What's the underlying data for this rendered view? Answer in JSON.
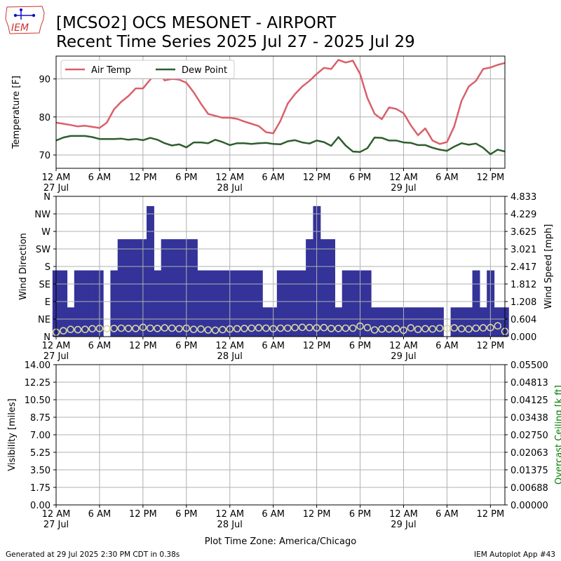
{
  "header": {
    "title_line1": "[MCSO2] OCS MESONET - AIRPORT",
    "title_line2": "Recent Time Series 2025 Jul 27 - 2025 Jul 29",
    "logo_text": "IEM"
  },
  "footer": {
    "generated": "Generated at 29 Jul 2025 2:30 PM CDT in 0.38s",
    "app": "IEM Autoplot App #43",
    "xlabel": "Plot Time Zone: America/Chicago"
  },
  "colors": {
    "air_temp": "#d9606a",
    "dew_point": "#2e5e2e",
    "wind_dir": "#333399",
    "wind_speed": "#d8d8a0",
    "ceiling_label": "#008000"
  },
  "time_axis": {
    "range_hours": [
      0,
      62
    ],
    "ticks": [
      {
        "h": 0,
        "label": "12 AM",
        "date": "27 Jul"
      },
      {
        "h": 6,
        "label": "6 AM",
        "date": ""
      },
      {
        "h": 12,
        "label": "12 PM",
        "date": ""
      },
      {
        "h": 18,
        "label": "6 PM",
        "date": ""
      },
      {
        "h": 24,
        "label": "12 AM",
        "date": "28 Jul"
      },
      {
        "h": 30,
        "label": "6 AM",
        "date": ""
      },
      {
        "h": 36,
        "label": "12 PM",
        "date": ""
      },
      {
        "h": 42,
        "label": "6 PM",
        "date": ""
      },
      {
        "h": 48,
        "label": "12 AM",
        "date": "29 Jul"
      },
      {
        "h": 54,
        "label": "6 AM",
        "date": ""
      },
      {
        "h": 60,
        "label": "12 PM",
        "date": ""
      }
    ]
  },
  "chart_data": [
    {
      "type": "line",
      "ylabel": "Temperature [F]",
      "ylim": [
        66.5,
        96
      ],
      "yticks": [
        70,
        80,
        90
      ],
      "grid": true,
      "legend": "top-left",
      "series": [
        {
          "name": "Air Temp",
          "x": [
            0,
            1,
            2,
            3,
            4,
            5,
            6,
            7,
            8,
            9,
            10,
            11,
            12,
            13,
            14,
            15,
            16,
            17,
            18,
            19,
            20,
            21,
            22,
            23,
            24,
            25,
            26,
            27,
            28,
            29,
            30,
            31,
            32,
            33,
            34,
            35,
            36,
            37,
            38,
            39,
            40,
            41,
            42,
            43,
            44,
            45,
            46,
            47,
            48,
            49,
            50,
            51,
            52,
            53,
            54,
            55,
            56,
            57,
            58,
            59,
            60,
            61,
            62
          ],
          "y": [
            78.5,
            78.2,
            77.9,
            77.5,
            77.7,
            77.4,
            77.1,
            78.5,
            82.0,
            84.0,
            85.5,
            87.5,
            87.5,
            89.8,
            92.0,
            89.6,
            90.0,
            89.8,
            89.0,
            86.5,
            83.5,
            80.8,
            80.3,
            79.8,
            79.8,
            79.5,
            78.8,
            78.2,
            77.6,
            76.0,
            75.7,
            79.0,
            83.5,
            86.0,
            88.0,
            89.5,
            91.3,
            92.9,
            92.6,
            95.0,
            94.3,
            94.8,
            91.3,
            85.0,
            80.8,
            79.4,
            82.5,
            82.1,
            81.0,
            77.8,
            75.2,
            77.0,
            73.8,
            72.9,
            73.4,
            77.5,
            84.2,
            88.0,
            89.5,
            92.6,
            93.0,
            93.7,
            94.2
          ]
        },
        {
          "name": "Dew Point",
          "x": [
            0,
            1,
            2,
            3,
            4,
            5,
            6,
            7,
            8,
            9,
            10,
            11,
            12,
            13,
            14,
            15,
            16,
            17,
            18,
            19,
            20,
            21,
            22,
            23,
            24,
            25,
            26,
            27,
            28,
            29,
            30,
            31,
            32,
            33,
            34,
            35,
            36,
            37,
            38,
            39,
            40,
            41,
            42,
            43,
            44,
            45,
            46,
            47,
            48,
            49,
            50,
            51,
            52,
            53,
            54,
            55,
            56,
            57,
            58,
            59,
            60,
            61,
            62
          ],
          "y": [
            73.8,
            74.6,
            75.0,
            75.0,
            75.0,
            74.7,
            74.2,
            74.2,
            74.2,
            74.3,
            74.0,
            74.2,
            73.9,
            74.5,
            74.0,
            73.1,
            72.5,
            72.8,
            72.0,
            73.3,
            73.3,
            73.1,
            74.0,
            73.4,
            72.6,
            73.1,
            73.1,
            72.9,
            73.1,
            73.2,
            72.9,
            72.8,
            73.6,
            73.9,
            73.3,
            73.0,
            73.8,
            73.4,
            72.4,
            74.7,
            72.5,
            70.9,
            70.8,
            71.8,
            74.6,
            74.5,
            73.8,
            73.8,
            73.3,
            73.2,
            72.6,
            72.6,
            71.9,
            71.4,
            71.1,
            72.2,
            73.1,
            72.7,
            73.0,
            71.9,
            70.2,
            71.4,
            70.9
          ]
        }
      ]
    },
    {
      "type": "bar",
      "ylabel": "Wind Direction",
      "y2label": "Wind Speed [mph]",
      "ylim": [
        0,
        360
      ],
      "yticks": [
        "N",
        "NE",
        "E",
        "SE",
        "S",
        "SW",
        "W",
        "NW",
        "N"
      ],
      "y2lim": [
        0,
        4.833
      ],
      "y2ticks": [
        "0.000",
        "0.604",
        "1.208",
        "1.812",
        "2.417",
        "3.021",
        "3.625",
        "4.229",
        "4.833"
      ],
      "grid": true,
      "series": [
        {
          "name": "Wind Direction",
          "x": [
            0,
            1,
            2,
            3,
            4,
            5,
            6,
            7,
            8,
            9,
            10,
            11,
            12,
            13,
            14,
            15,
            16,
            17,
            18,
            19,
            20,
            21,
            22,
            23,
            24,
            25,
            26,
            27,
            28,
            29,
            30,
            31,
            32,
            33,
            34,
            35,
            36,
            37,
            38,
            39,
            40,
            41,
            42,
            43,
            44,
            45,
            46,
            47,
            48,
            49,
            50,
            51,
            52,
            53,
            54,
            55,
            56,
            57,
            58,
            59,
            60,
            61,
            62
          ],
          "y": [
            170,
            170,
            75,
            170,
            170,
            170,
            170,
            0,
            170,
            250,
            250,
            250,
            250,
            335,
            170,
            250,
            250,
            250,
            250,
            250,
            170,
            170,
            170,
            170,
            170,
            170,
            170,
            170,
            170,
            75,
            75,
            170,
            170,
            170,
            170,
            250,
            335,
            250,
            250,
            75,
            170,
            170,
            170,
            170,
            75,
            75,
            75,
            75,
            75,
            75,
            75,
            75,
            75,
            75,
            0,
            75,
            75,
            75,
            170,
            75,
            170,
            75,
            75
          ],
          "x_values_note": ""
        },
        {
          "name": "Wind Speed",
          "type": "scatter",
          "x": [
            0,
            1,
            2,
            3,
            4,
            5,
            6,
            7,
            8,
            9,
            10,
            11,
            12,
            13,
            14,
            15,
            16,
            17,
            18,
            19,
            20,
            21,
            22,
            23,
            24,
            25,
            26,
            27,
            28,
            29,
            30,
            31,
            32,
            33,
            34,
            35,
            36,
            37,
            38,
            39,
            40,
            41,
            42,
            43,
            44,
            45,
            46,
            47,
            48,
            49,
            50,
            51,
            52,
            53,
            54,
            55,
            56,
            57,
            58,
            59,
            60,
            61,
            62
          ],
          "y": [
            0.15,
            0.2,
            0.25,
            0.24,
            0.25,
            0.27,
            0.28,
            0.27,
            0.28,
            0.29,
            0.28,
            0.28,
            0.32,
            0.29,
            0.28,
            0.3,
            0.29,
            0.27,
            0.29,
            0.25,
            0.26,
            0.23,
            0.22,
            0.24,
            0.26,
            0.27,
            0.28,
            0.29,
            0.3,
            0.29,
            0.27,
            0.29,
            0.29,
            0.31,
            0.32,
            0.31,
            0.3,
            0.31,
            0.28,
            0.28,
            0.29,
            0.29,
            0.36,
            0.31,
            0.23,
            0.26,
            0.26,
            0.27,
            0.22,
            0.3,
            0.25,
            0.27,
            0.26,
            0.29,
            0.28,
            0.3,
            0.27,
            0.26,
            0.29,
            0.3,
            0.31,
            0.37,
            0.18
          ]
        }
      ]
    },
    {
      "type": "line",
      "ylabel": "Visibility [miles]",
      "y2label": "Overcast Ceiling [k ft]",
      "ylim": [
        0,
        14
      ],
      "yticks": [
        "0.00",
        "1.75",
        "3.50",
        "5.25",
        "7.00",
        "8.75",
        "10.50",
        "12.25",
        "14.00"
      ],
      "y2lim": [
        0,
        0.055
      ],
      "y2ticks": [
        "0.00000",
        "0.00688",
        "0.01375",
        "0.02063",
        "0.02750",
        "0.03438",
        "0.04125",
        "0.04813",
        "0.05500"
      ],
      "grid": true,
      "series": []
    }
  ]
}
